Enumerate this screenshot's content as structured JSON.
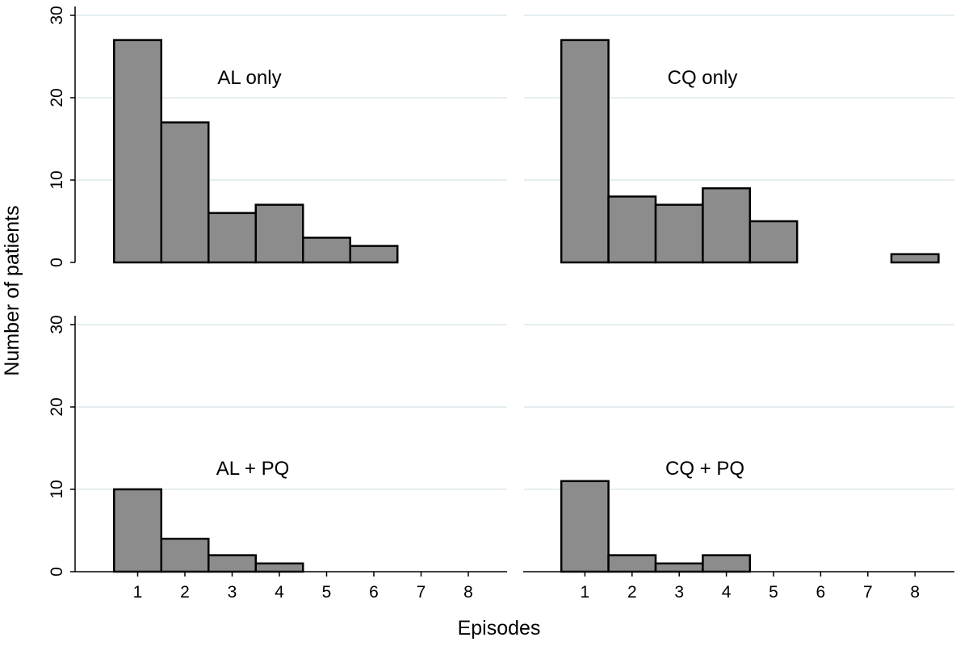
{
  "chart_data": {
    "type": "bar",
    "kind": "histogram",
    "xlabel": "Episodes",
    "ylabel": "Number of patients",
    "bar_color": "#8c8c8c",
    "grid": true,
    "x_ticks": [
      "1",
      "2",
      "3",
      "4",
      "5",
      "6",
      "7",
      "8"
    ],
    "y_ticks": [
      "0",
      "10",
      "20",
      "30"
    ],
    "xlim": [
      0,
      9
    ],
    "ylim": [
      0,
      30
    ],
    "panels": [
      {
        "label": "AL only",
        "categories": [
          1,
          2,
          3,
          4,
          5,
          6,
          7,
          8
        ],
        "values": [
          27,
          17,
          6,
          7,
          3,
          2,
          0,
          0
        ]
      },
      {
        "label": "CQ only",
        "categories": [
          1,
          2,
          3,
          4,
          5,
          6,
          7,
          8
        ],
        "values": [
          27,
          8,
          7,
          9,
          5,
          0,
          0,
          1
        ]
      },
      {
        "label": "AL + PQ",
        "categories": [
          1,
          2,
          3,
          4,
          5,
          6,
          7,
          8
        ],
        "values": [
          10,
          4,
          2,
          1,
          0,
          0,
          0,
          0
        ]
      },
      {
        "label": "CQ + PQ",
        "categories": [
          1,
          2,
          3,
          4,
          5,
          6,
          7,
          8
        ],
        "values": [
          11,
          2,
          1,
          2,
          0,
          0,
          0,
          0
        ]
      }
    ]
  }
}
